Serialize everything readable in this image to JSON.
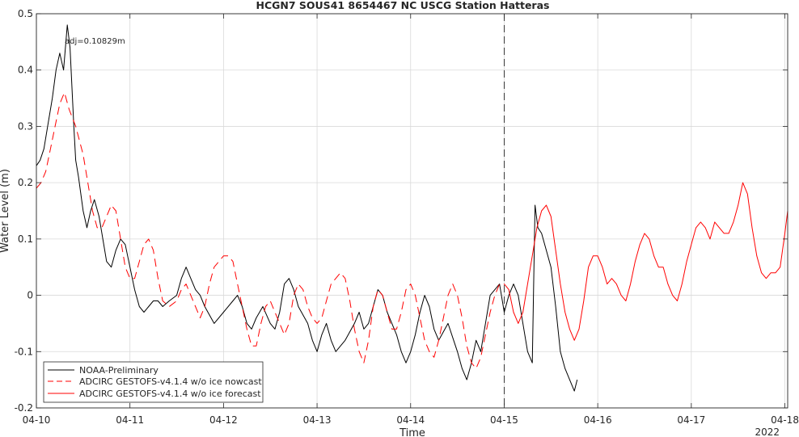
{
  "chart_data": {
    "type": "line",
    "title": "HCGN7 SOUS41 8654467 NC USCG Station Hatteras",
    "xlabel": "Time",
    "ylabel": "Water Level (m)",
    "x_unit": "day",
    "xlim": [
      0,
      8.03
    ],
    "ylim": [
      -0.2,
      0.5
    ],
    "x_ticks": [
      0,
      1,
      2,
      3,
      4,
      5,
      6,
      7,
      8
    ],
    "x_tick_labels": [
      "04-10",
      "04-11",
      "04-12",
      "04-13",
      "04-14",
      "04-15",
      "04-16",
      "04-17",
      "04-18"
    ],
    "y_ticks": [
      -0.2,
      -0.1,
      0,
      0.1,
      0.2,
      0.3,
      0.4,
      0.5
    ],
    "y_tick_labels": [
      "-0.2",
      "-0.1",
      "0",
      "0.1",
      "0.2",
      "0.3",
      "0.4",
      "0.5"
    ],
    "year_label": "2022",
    "vline_x": 5,
    "annotation": "adj=0.10829m",
    "grid": true,
    "legend_position": "bottom-left",
    "colors": {
      "observed": "#000000",
      "model": "#ff0000",
      "grid": "#d9d9d9",
      "axis": "#262626"
    },
    "series": [
      {
        "name": "NOAA-Preliminary",
        "style": "solid",
        "color": "#000000",
        "x": [
          0.0,
          0.04,
          0.08,
          0.12,
          0.17,
          0.21,
          0.25,
          0.29,
          0.33,
          0.36,
          0.4,
          0.42,
          0.45,
          0.5,
          0.54,
          0.58,
          0.62,
          0.67,
          0.7,
          0.75,
          0.8,
          0.85,
          0.9,
          0.95,
          1.0,
          1.05,
          1.1,
          1.15,
          1.2,
          1.25,
          1.3,
          1.35,
          1.42,
          1.5,
          1.55,
          1.6,
          1.65,
          1.7,
          1.75,
          1.8,
          1.9,
          2.0,
          2.1,
          2.15,
          2.2,
          2.25,
          2.3,
          2.35,
          2.42,
          2.5,
          2.55,
          2.6,
          2.65,
          2.7,
          2.75,
          2.8,
          2.9,
          2.95,
          3.0,
          3.05,
          3.1,
          3.15,
          3.2,
          3.3,
          3.4,
          3.45,
          3.5,
          3.55,
          3.6,
          3.65,
          3.7,
          3.75,
          3.8,
          3.85,
          3.9,
          3.95,
          4.0,
          4.05,
          4.1,
          4.15,
          4.2,
          4.25,
          4.3,
          4.4,
          4.5,
          4.55,
          4.6,
          4.65,
          4.7,
          4.75,
          4.8,
          4.85,
          4.9,
          4.95,
          5.0,
          5.05,
          5.1,
          5.15,
          5.2,
          5.25,
          5.3,
          5.33,
          5.36,
          5.4,
          5.45,
          5.5,
          5.55,
          5.6,
          5.65,
          5.7,
          5.75,
          5.78
        ],
        "y": [
          0.23,
          0.24,
          0.26,
          0.3,
          0.35,
          0.4,
          0.43,
          0.4,
          0.48,
          0.44,
          0.3,
          0.24,
          0.21,
          0.15,
          0.12,
          0.15,
          0.17,
          0.14,
          0.11,
          0.06,
          0.05,
          0.08,
          0.1,
          0.09,
          0.05,
          0.01,
          -0.02,
          -0.03,
          -0.02,
          -0.01,
          -0.01,
          -0.02,
          -0.01,
          0.0,
          0.03,
          0.05,
          0.03,
          0.01,
          0.0,
          -0.02,
          -0.05,
          -0.03,
          -0.01,
          0.0,
          -0.02,
          -0.05,
          -0.06,
          -0.04,
          -0.02,
          -0.05,
          -0.06,
          -0.03,
          0.02,
          0.03,
          0.01,
          -0.02,
          -0.05,
          -0.08,
          -0.1,
          -0.07,
          -0.05,
          -0.08,
          -0.1,
          -0.08,
          -0.05,
          -0.03,
          -0.06,
          -0.05,
          -0.02,
          0.01,
          0.0,
          -0.03,
          -0.05,
          -0.07,
          -0.1,
          -0.12,
          -0.1,
          -0.07,
          -0.03,
          0.0,
          -0.02,
          -0.06,
          -0.08,
          -0.05,
          -0.1,
          -0.13,
          -0.15,
          -0.12,
          -0.08,
          -0.1,
          -0.05,
          0.0,
          0.01,
          0.02,
          -0.03,
          0.0,
          0.02,
          0.0,
          -0.05,
          -0.1,
          -0.12,
          0.16,
          0.12,
          0.11,
          0.08,
          0.05,
          -0.02,
          -0.1,
          -0.13,
          -0.15,
          -0.17,
          -0.15
        ]
      },
      {
        "name": "ADCIRC GESTOFS-v4.1.4 w/o ice nowcast",
        "style": "dashed",
        "color": "#ff0000",
        "x": [
          0.0,
          0.05,
          0.1,
          0.15,
          0.2,
          0.25,
          0.3,
          0.35,
          0.42,
          0.5,
          0.55,
          0.6,
          0.65,
          0.7,
          0.75,
          0.8,
          0.85,
          0.9,
          0.95,
          1.0,
          1.05,
          1.1,
          1.15,
          1.2,
          1.25,
          1.3,
          1.35,
          1.42,
          1.5,
          1.55,
          1.6,
          1.65,
          1.7,
          1.75,
          1.8,
          1.85,
          1.9,
          2.0,
          2.05,
          2.1,
          2.15,
          2.2,
          2.25,
          2.3,
          2.35,
          2.4,
          2.45,
          2.5,
          2.55,
          2.6,
          2.65,
          2.7,
          2.75,
          2.8,
          2.85,
          2.9,
          2.95,
          3.0,
          3.05,
          3.1,
          3.15,
          3.2,
          3.25,
          3.3,
          3.35,
          3.4,
          3.45,
          3.5,
          3.55,
          3.6,
          3.65,
          3.7,
          3.75,
          3.8,
          3.85,
          3.9,
          3.95,
          4.0,
          4.05,
          4.1,
          4.15,
          4.2,
          4.25,
          4.3,
          4.35,
          4.4,
          4.45,
          4.5,
          4.55,
          4.6,
          4.65,
          4.7,
          4.75,
          4.8,
          4.85,
          4.9,
          4.95,
          5.0
        ],
        "y": [
          0.19,
          0.2,
          0.22,
          0.26,
          0.3,
          0.34,
          0.36,
          0.33,
          0.3,
          0.25,
          0.2,
          0.15,
          0.12,
          0.12,
          0.14,
          0.16,
          0.15,
          0.1,
          0.05,
          0.03,
          0.03,
          0.06,
          0.09,
          0.1,
          0.08,
          0.03,
          -0.01,
          -0.02,
          -0.01,
          0.01,
          0.02,
          0.0,
          -0.02,
          -0.04,
          -0.02,
          0.02,
          0.05,
          0.07,
          0.07,
          0.06,
          0.02,
          -0.02,
          -0.06,
          -0.09,
          -0.09,
          -0.05,
          -0.02,
          -0.01,
          -0.03,
          -0.05,
          -0.07,
          -0.05,
          0.0,
          0.02,
          0.01,
          -0.02,
          -0.04,
          -0.05,
          -0.04,
          -0.01,
          0.02,
          0.03,
          0.04,
          0.03,
          -0.01,
          -0.06,
          -0.1,
          -0.12,
          -0.08,
          -0.02,
          0.01,
          0.0,
          -0.03,
          -0.06,
          -0.06,
          -0.03,
          0.01,
          0.02,
          0.0,
          -0.04,
          -0.08,
          -0.1,
          -0.11,
          -0.08,
          -0.04,
          0.0,
          0.02,
          0.0,
          -0.04,
          -0.09,
          -0.12,
          -0.13,
          -0.11,
          -0.07,
          -0.03,
          0.0,
          0.02,
          0.02
        ]
      },
      {
        "name": "ADCIRC GESTOFS-v4.1.4 w/o ice forecast",
        "style": "solid",
        "color": "#ff0000",
        "x": [
          5.0,
          5.05,
          5.1,
          5.15,
          5.2,
          5.25,
          5.3,
          5.35,
          5.4,
          5.45,
          5.5,
          5.55,
          5.6,
          5.65,
          5.7,
          5.75,
          5.8,
          5.85,
          5.9,
          5.95,
          6.0,
          6.05,
          6.1,
          6.15,
          6.2,
          6.25,
          6.3,
          6.35,
          6.4,
          6.45,
          6.5,
          6.55,
          6.6,
          6.65,
          6.7,
          6.75,
          6.8,
          6.85,
          6.9,
          6.95,
          7.0,
          7.05,
          7.1,
          7.15,
          7.2,
          7.25,
          7.3,
          7.35,
          7.4,
          7.45,
          7.5,
          7.55,
          7.6,
          7.65,
          7.7,
          7.75,
          7.8,
          7.85,
          7.9,
          7.95,
          8.0,
          8.03
        ],
        "y": [
          0.02,
          0.01,
          -0.03,
          -0.05,
          -0.03,
          0.02,
          0.07,
          0.12,
          0.15,
          0.16,
          0.14,
          0.08,
          0.02,
          -0.03,
          -0.06,
          -0.08,
          -0.06,
          -0.01,
          0.05,
          0.07,
          0.07,
          0.05,
          0.02,
          0.03,
          0.02,
          0.0,
          -0.01,
          0.02,
          0.06,
          0.09,
          0.11,
          0.1,
          0.07,
          0.05,
          0.05,
          0.02,
          0.0,
          -0.01,
          0.02,
          0.06,
          0.09,
          0.12,
          0.13,
          0.12,
          0.1,
          0.13,
          0.12,
          0.11,
          0.11,
          0.13,
          0.16,
          0.2,
          0.18,
          0.12,
          0.07,
          0.04,
          0.03,
          0.04,
          0.04,
          0.05,
          0.11,
          0.15
        ]
      }
    ]
  }
}
